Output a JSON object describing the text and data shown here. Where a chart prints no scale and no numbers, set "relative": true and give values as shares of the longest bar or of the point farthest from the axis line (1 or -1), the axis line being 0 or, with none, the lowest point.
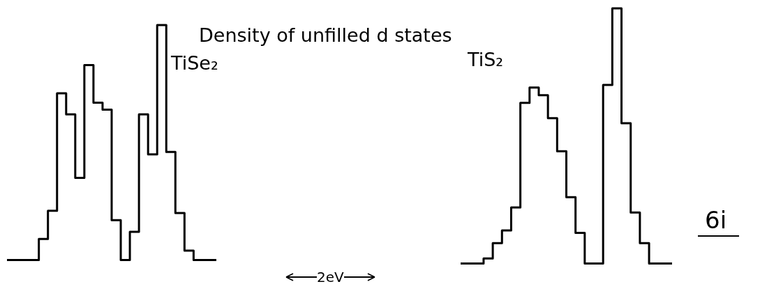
{
  "chart_data": [
    {
      "type": "step",
      "relative": true,
      "title": "Density of unfilled d states",
      "annotations": [
        "2eV"
      ],
      "categories": [
        null,
        null,
        null,
        null,
        null,
        null,
        null,
        null,
        null,
        null,
        null,
        null,
        null,
        null,
        null,
        null,
        null,
        null,
        null,
        null,
        null,
        null,
        null,
        null
      ],
      "series": [
        {
          "name": "TiSe₂",
          "color": "#000000",
          "values": [
            0,
            0,
            0,
            0,
            0.09,
            0.21,
            0.71,
            0.62,
            0.35,
            0.83,
            0.67,
            0.64,
            0.17,
            0,
            0.12,
            0.62,
            0.45,
            1,
            0.46,
            0.2,
            0.04,
            0,
            0,
            0
          ]
        }
      ]
    },
    {
      "type": "step",
      "relative": true,
      "annotations": [
        "6i"
      ],
      "categories": [
        null,
        null,
        null,
        null,
        null,
        null,
        null,
        null,
        null,
        null,
        null,
        null,
        null,
        null,
        null,
        null,
        null,
        null,
        null,
        null,
        null,
        null,
        null,
        null
      ],
      "series": [
        {
          "name": "TiS₂",
          "color": "#000000",
          "values": [
            0,
            0,
            0,
            0.02,
            0.08,
            0.13,
            0.22,
            0.63,
            0.69,
            0.66,
            0.57,
            0.44,
            0.26,
            0.12,
            0,
            0,
            0.7,
            1,
            0.55,
            0.2,
            0.08,
            0,
            0,
            0
          ]
        }
      ]
    }
  ]
}
